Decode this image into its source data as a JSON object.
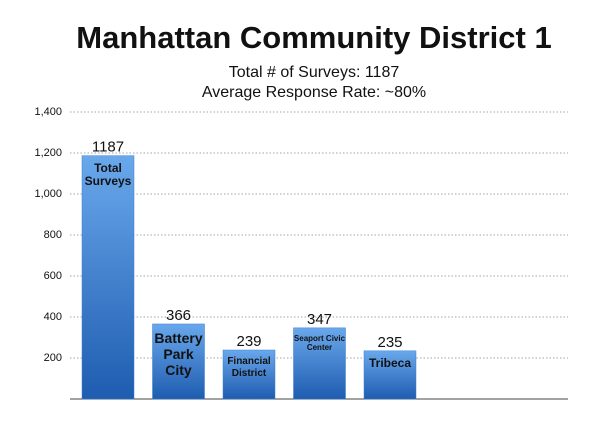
{
  "chart_data": {
    "type": "bar",
    "title": "Manhattan Community District 1",
    "subtitles": [
      "Total # of Surveys: 1187",
      "Average Response Rate: ~80%"
    ],
    "categories": [
      "Total Surveys",
      "Battery Park City",
      "Financial District",
      "Seaport Civic Center",
      "Tribeca"
    ],
    "values": [
      1187,
      366,
      239,
      347,
      235
    ],
    "color": "#3a7fd0",
    "ylim": [
      0,
      1400
    ],
    "yticks": [
      200,
      400,
      600,
      800,
      {
        "value": 1000,
        "label": "1,000"
      },
      {
        "value": 1200,
        "label": "1,200"
      },
      {
        "value": 1400,
        "label": "1,400"
      }
    ],
    "grid": true
  }
}
